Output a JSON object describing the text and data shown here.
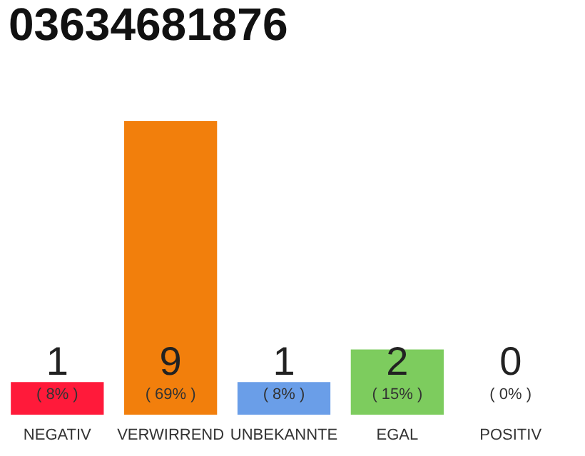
{
  "chart_data": {
    "type": "bar",
    "title": "03634681876",
    "categories": [
      "NEGATIV",
      "VERWIRREND",
      "UNBEKANNTE",
      "EGAL",
      "POSITIV"
    ],
    "values": [
      1,
      9,
      1,
      2,
      0
    ],
    "colors": [
      "#ff1a3a",
      "#f27f0c",
      "#6a9ee8",
      "#7dcc5e",
      "#dddddd"
    ],
    "data_labels": true,
    "annotations": [
      "( 8% )",
      "( 69% )",
      "( 8% )",
      "( 15% )",
      "( 0% )"
    ]
  }
}
